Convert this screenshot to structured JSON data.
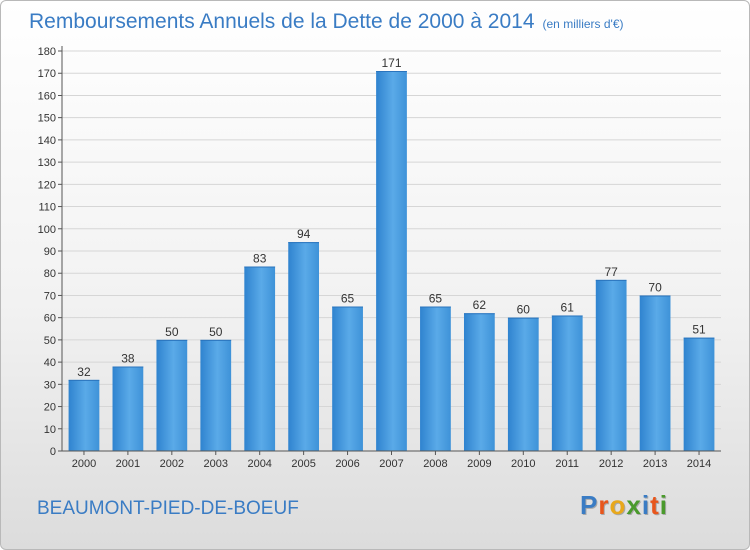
{
  "title": "Remboursements Annuels de la Dette de 2000 à 2014",
  "title_unit": "(en milliers d'€)",
  "commune": "BEAUMONT-PIED-DE-BOEUF",
  "logo": {
    "text": "Proxiti",
    "letters": [
      {
        "char": "P",
        "color": "#3a7cc4"
      },
      {
        "char": "r",
        "color": "#e8561c"
      },
      {
        "char": "o",
        "color": "#e8a81c"
      },
      {
        "char": "x",
        "color": "#4a9a2c"
      },
      {
        "char": "i",
        "color": "#3a7cc4"
      },
      {
        "char": "t",
        "color": "#e8561c"
      },
      {
        "char": "i",
        "color": "#4a9a2c"
      }
    ]
  },
  "chart_data": {
    "type": "bar",
    "title": "Remboursements Annuels de la Dette de 2000 à 2014",
    "categories": [
      "2000",
      "2001",
      "2002",
      "2003",
      "2004",
      "2005",
      "2006",
      "2007",
      "2008",
      "2009",
      "2010",
      "2011",
      "2012",
      "2013",
      "2014"
    ],
    "values": [
      32,
      38,
      50,
      50,
      83,
      94,
      65,
      171,
      65,
      62,
      60,
      61,
      77,
      70,
      51
    ],
    "ylim": [
      0,
      180
    ],
    "yticks": [
      0,
      10,
      20,
      30,
      40,
      50,
      60,
      70,
      80,
      90,
      100,
      110,
      120,
      130,
      140,
      150,
      160,
      170,
      180
    ],
    "grid": true,
    "bar_color": "#4a9ee0"
  }
}
